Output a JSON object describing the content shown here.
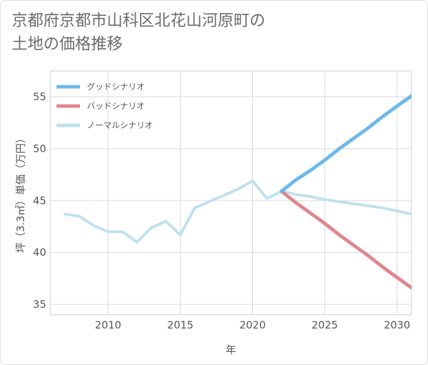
{
  "title_lines": [
    "京都府京都市山科区北花山河原町の",
    "土地の価格推移"
  ],
  "chart_data": {
    "type": "line",
    "title": "京都府京都市山科区北花山河原町の土地の価格推移",
    "xlabel": "年",
    "ylabel": "坪（3.3㎡）単価（万円）",
    "xlim": [
      2006,
      2031
    ],
    "ylim": [
      34,
      57.5
    ],
    "xticks": [
      2010,
      2015,
      2020,
      2025,
      2030
    ],
    "yticks": [
      35,
      40,
      45,
      50,
      55
    ],
    "grid": true,
    "legend_position": "top-left",
    "series": [
      {
        "name": "グッドシナリオ",
        "color": "#6bb8ea",
        "x": [
          2022,
          2023,
          2024,
          2025,
          2026,
          2027,
          2028,
          2029,
          2030,
          2031
        ],
        "y": [
          45.9,
          47.0,
          47.9,
          48.9,
          50.0,
          51.0,
          52.0,
          53.1,
          54.1,
          55.1
        ]
      },
      {
        "name": "バッドシナリオ",
        "color": "#e0868e",
        "x": [
          2022,
          2023,
          2024,
          2025,
          2026,
          2027,
          2028,
          2029,
          2030,
          2031
        ],
        "y": [
          45.9,
          44.8,
          43.8,
          42.8,
          41.7,
          40.7,
          39.7,
          38.6,
          37.6,
          36.6
        ]
      },
      {
        "name": "ノーマルシナリオ",
        "color": "#bfe0ee",
        "x": [
          2007,
          2008,
          2009,
          2010,
          2011,
          2012,
          2013,
          2014,
          2015,
          2016,
          2017,
          2018,
          2019,
          2020,
          2021,
          2022,
          2023,
          2024,
          2025,
          2026,
          2027,
          2028,
          2029,
          2030,
          2031
        ],
        "y": [
          43.7,
          43.5,
          42.6,
          42.0,
          42.0,
          41.0,
          42.4,
          43.0,
          41.7,
          44.3,
          44.9,
          45.5,
          46.1,
          46.9,
          45.2,
          45.9,
          45.6,
          45.4,
          45.1,
          44.9,
          44.7,
          44.5,
          44.3,
          44.0,
          43.7
        ]
      }
    ]
  }
}
